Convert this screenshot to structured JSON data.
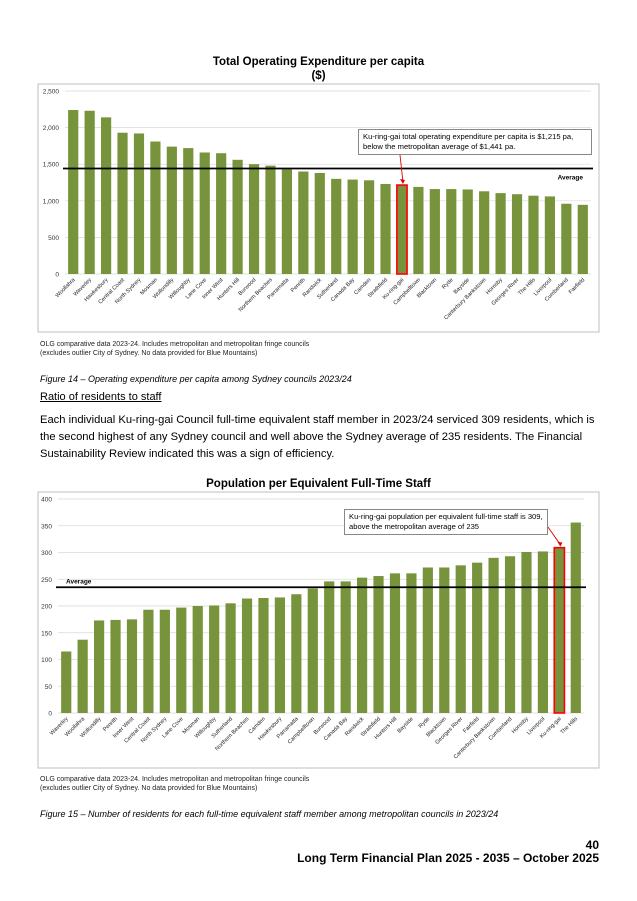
{
  "chart_data": [
    {
      "type": "bar",
      "title": "Total Operating Expenditure per capita",
      "subtitle": "($)",
      "categories": [
        "Woollahra",
        "Waverley",
        "Hawkesbury",
        "Central Coast",
        "North Sydney",
        "Mosman",
        "Wollondilly",
        "Willoughby",
        "Lane Cove",
        "Inner West",
        "Hunters Hill",
        "Burwood",
        "Northern Beaches",
        "Parramatta",
        "Penrith",
        "Randwick",
        "Sutherland",
        "Canada Bay",
        "Camden",
        "Strathfield",
        "Ku-ring-gai",
        "Campbelltown",
        "Blacktown",
        "Ryde",
        "Bayside",
        "Canterbury Bankstown",
        "Hornsby",
        "Georges River",
        "The Hills",
        "Liverpool",
        "Cumberland",
        "Fairfield"
      ],
      "values": [
        2240,
        2230,
        2140,
        1930,
        1920,
        1810,
        1740,
        1720,
        1660,
        1650,
        1560,
        1500,
        1480,
        1430,
        1400,
        1380,
        1300,
        1290,
        1280,
        1230,
        1215,
        1190,
        1160,
        1160,
        1155,
        1130,
        1105,
        1090,
        1070,
        1060,
        960,
        945
      ],
      "highlight": "Ku-ring-gai",
      "average": 1441,
      "average_label": "Average",
      "yticks": [
        "2,500",
        "2,000",
        "1,500",
        "1,000",
        "500",
        "0"
      ],
      "ylim": [
        0,
        2500
      ],
      "annotation": "Ku-ring-gai total operating expenditure per capita is $1,215 pa, below the metropolitan average of $1,441 pa.",
      "colors": {
        "bar": "#77933c",
        "highlight": "#ff0000",
        "average": "#000000"
      }
    },
    {
      "type": "bar",
      "title": "Population per Equivalent Full-Time Staff",
      "categories": [
        "Waverley",
        "Woollahra",
        "Wollondilly",
        "Penrith",
        "Inner West",
        "Central Coast",
        "North Sydney",
        "Lane Cove",
        "Mosman",
        "Willoughby",
        "Sutherland",
        "Northern Beaches",
        "Camden",
        "Hawkesbury",
        "Parramatta",
        "Campbelltown",
        "Burwood",
        "Canada Bay",
        "Randwick",
        "Strathfield",
        "Hunters Hill",
        "Bayside",
        "Ryde",
        "Blacktown",
        "Georges River",
        "Fairfield",
        "Canterbury Bankstown",
        "Cumberland",
        "Hornsby",
        "Liverpool",
        "Ku-ring-gai",
        "The Hills"
      ],
      "values": [
        115,
        137,
        173,
        174,
        175,
        193,
        193,
        197,
        200,
        201,
        205,
        214,
        215,
        216,
        222,
        233,
        246,
        246,
        253,
        256,
        261,
        261,
        272,
        272,
        276,
        281,
        290,
        293,
        301,
        302,
        309,
        356
      ],
      "highlight": "Ku-ring-gai",
      "average": 235,
      "average_label": "Average",
      "yticks": [
        "400",
        "350",
        "300",
        "250",
        "200",
        "150",
        "100",
        "50",
        "0"
      ],
      "ylim": [
        0,
        400
      ],
      "annotation": "Ku-ring-gai population per equivalent full-time staff is 309, above the metropolitan average of 235",
      "colors": {
        "bar": "#77933c",
        "highlight": "#ff0000",
        "average": "#000000"
      }
    }
  ],
  "chart1_note_1": "OLG comparative data 2023-24. Includes metropolitan and metropolitan fringe councils",
  "chart1_note_2": "(excludes outlier City of Sydney. No data provided for Blue Mountains)",
  "figure14_caption": "Figure 14 – Operating expenditure per capita among Sydney councils 2023/24",
  "section_heading": "Ratio of residents to staff",
  "paragraph": "Each individual Ku-ring-gai Council full-time equivalent staff member in 2023/24 serviced 309 residents, which is the second highest of any Sydney council and well above the Sydney average of 235 residents. The Financial Sustainability Review indicated this was a sign of efficiency.",
  "chart2_note_1": "OLG comparative data 2023-24. Includes metropolitan and metropolitan fringe councils",
  "chart2_note_2": "(excludes outlier City of Sydney. No data provided for Blue Mountains)",
  "figure15_caption": "Figure 15 – Number of residents for each full-time equivalent staff member among metropolitan councils in 2023/24",
  "footer": {
    "page_number": "40",
    "document_title": "Long Term Financial Plan 2025 - 2035 – October 2025"
  }
}
